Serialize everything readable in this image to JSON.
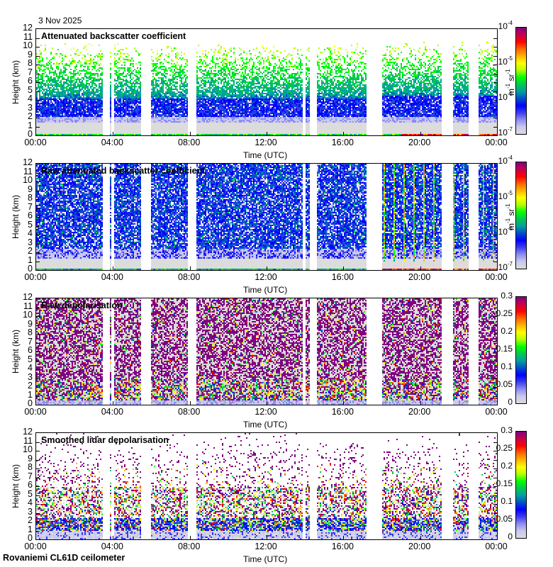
{
  "date": "3 Nov 2025",
  "footer": "Rovaniemi CL61D ceilometer",
  "axes": {
    "ylabel": "Height (km)",
    "xlabel": "Time (UTC)",
    "yticks": [
      "0",
      "1",
      "2",
      "3",
      "4",
      "5",
      "6",
      "7",
      "8",
      "9",
      "10",
      "11",
      "12"
    ],
    "xticks": [
      "00:00",
      "04:00",
      "08:00",
      "12:00",
      "16:00",
      "20:00",
      "00:00"
    ]
  },
  "chart_data": [
    {
      "type": "heatmap",
      "title": "Attenuated backscatter coefficient",
      "xlabel": "Time (UTC)",
      "ylabel": "Height (km)",
      "xlim_hours": [
        0,
        24
      ],
      "ylim_km": [
        0,
        12
      ],
      "colorbar": {
        "scale": "log",
        "range": [
          1e-07,
          0.0001
        ],
        "unit": "m-1 sr-1",
        "ticks": [
          "10-7",
          "10-6",
          "10-5",
          "10-4"
        ]
      },
      "kind": "backscatter"
    },
    {
      "type": "heatmap",
      "title": "Raw attenuated backscatter coefficient",
      "xlabel": "Time (UTC)",
      "ylabel": "Height (km)",
      "xlim_hours": [
        0,
        24
      ],
      "ylim_km": [
        0,
        12
      ],
      "colorbar": {
        "scale": "log",
        "range": [
          1e-07,
          0.0001
        ],
        "unit": "m-1 sr-1",
        "ticks": [
          "10-7",
          "10-6",
          "10-5",
          "10-4"
        ]
      },
      "kind": "raw_backscatter"
    },
    {
      "type": "heatmap",
      "title": "Raw depolarisation",
      "xlabel": "Time (UTC)",
      "ylabel": "Height (km)",
      "xlim_hours": [
        0,
        24
      ],
      "ylim_km": [
        0,
        12
      ],
      "colorbar": {
        "scale": "linear",
        "range": [
          0,
          0.3
        ],
        "unit": "",
        "ticks": [
          "0",
          "0.05",
          "0.1",
          "0.15",
          "0.2",
          "0.25",
          "0.3"
        ]
      },
      "kind": "raw_depol"
    },
    {
      "type": "heatmap",
      "title": "Smoothed lidar depolarisation",
      "xlabel": "Time (UTC)",
      "ylabel": "Height (km)",
      "xlim_hours": [
        0,
        24
      ],
      "ylim_km": [
        0,
        12
      ],
      "colorbar": {
        "scale": "linear",
        "range": [
          0,
          0.3
        ],
        "unit": "",
        "ticks": [
          "0",
          "0.05",
          "0.1",
          "0.15",
          "0.2",
          "0.25",
          "0.3"
        ]
      },
      "kind": "smooth_depol"
    }
  ],
  "data_gaps_hours": [
    [
      3.44,
      3.81
    ],
    [
      3.88,
      3.99
    ],
    [
      5.46,
      5.98
    ],
    [
      7.86,
      8.31
    ],
    [
      13.85,
      13.96
    ],
    [
      14.22,
      14.62
    ],
    [
      17.17,
      17.98
    ],
    [
      21.12,
      21.67
    ],
    [
      22.52,
      22.97
    ]
  ],
  "colormap": [
    "#dcdcdc",
    "#c8c8f0",
    "#8c8cf0",
    "#3c3cf0",
    "#0000ff",
    "#0050c8",
    "#00a0a0",
    "#00c850",
    "#00ff00",
    "#b4ff00",
    "#ffff00",
    "#ffb400",
    "#ff6400",
    "#ff0000",
    "#c80050",
    "#800080"
  ]
}
